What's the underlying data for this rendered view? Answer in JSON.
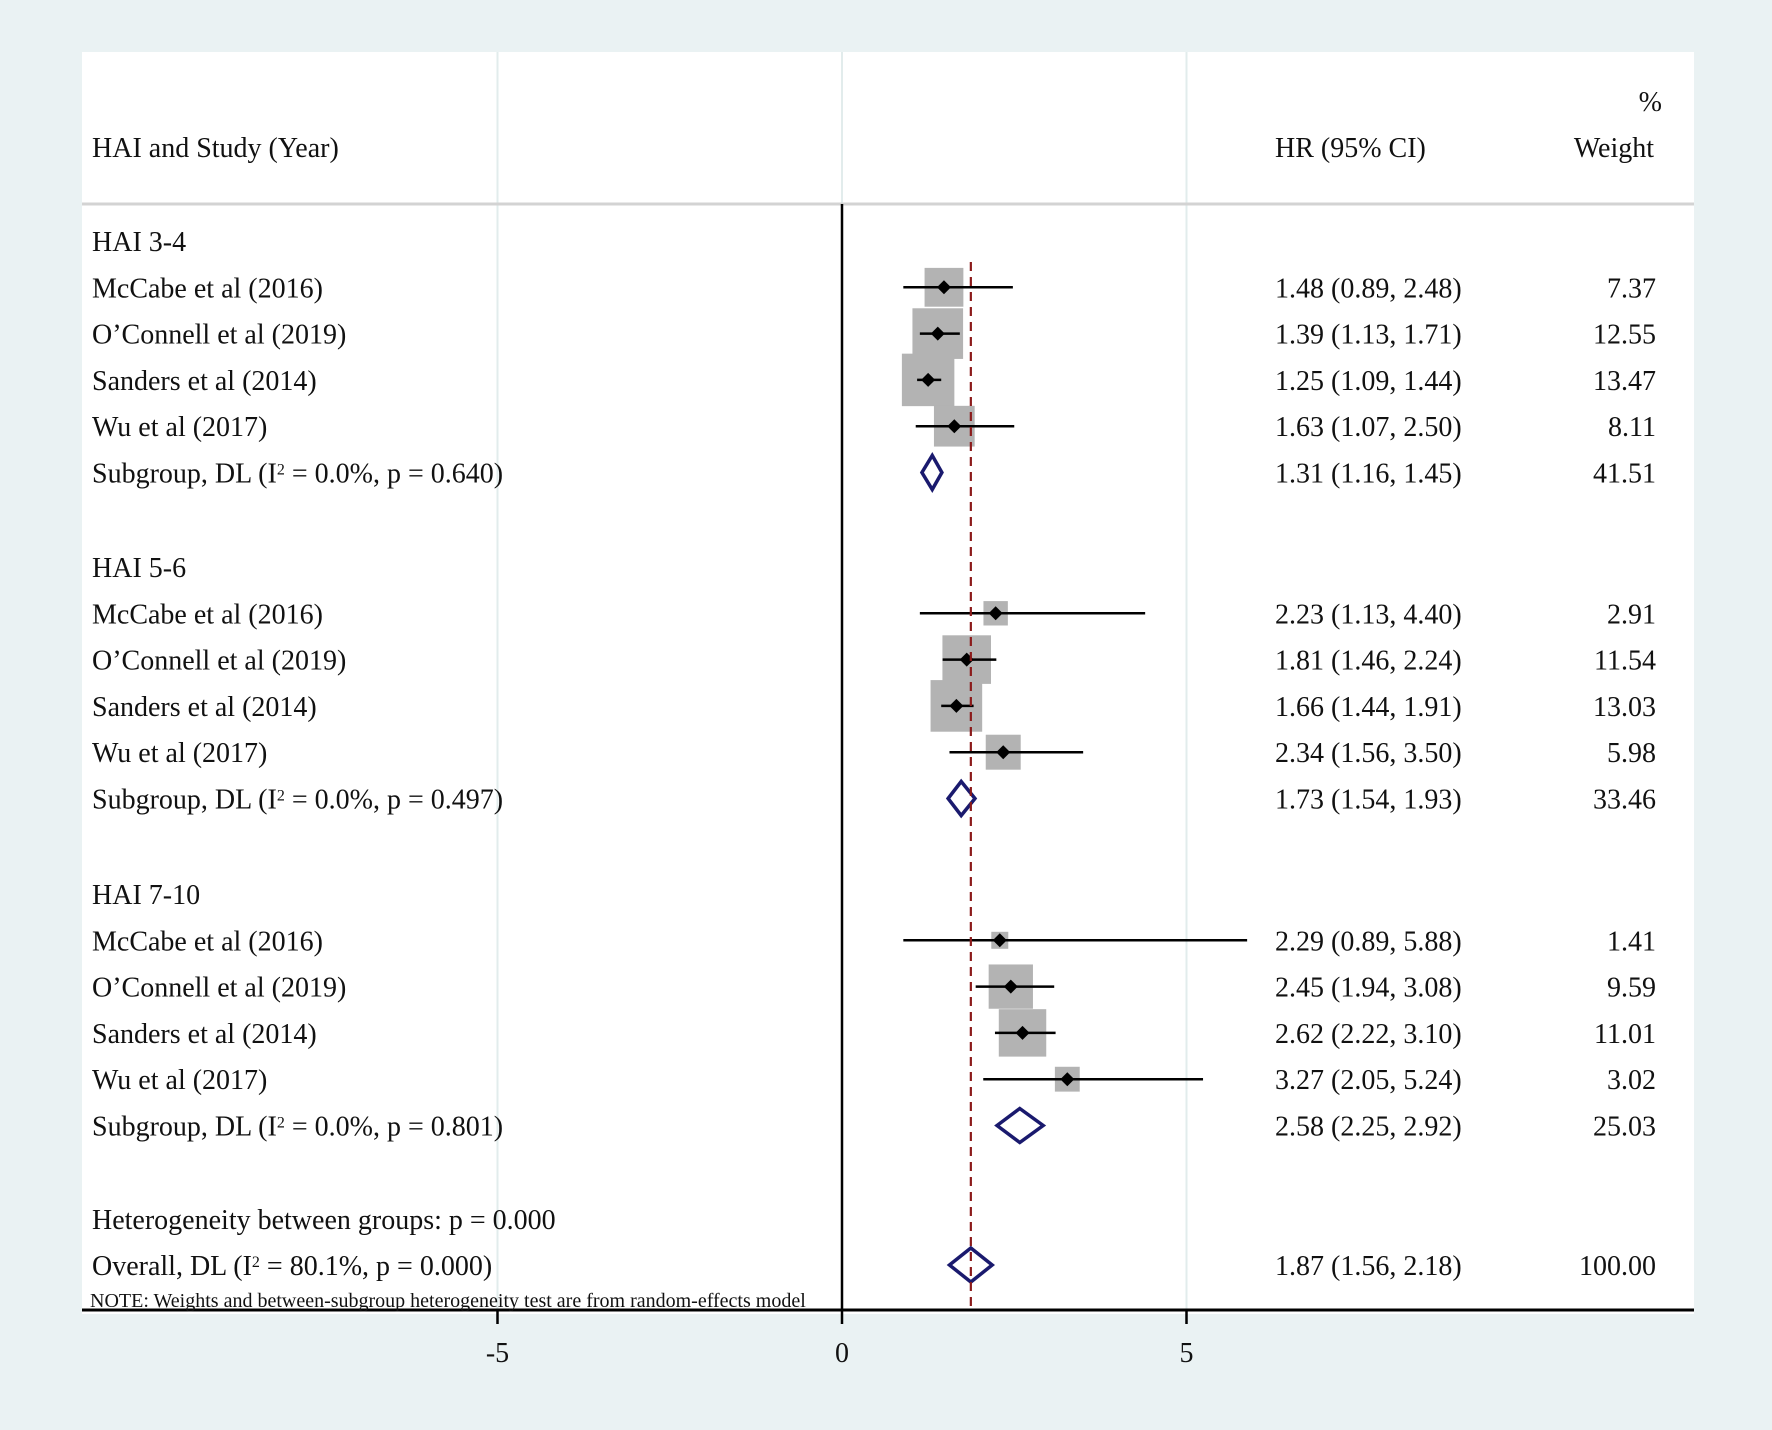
{
  "chart_data": {
    "type": "forest",
    "header": {
      "study_label": "HAI and Study (Year)",
      "effect_label": "HR (95% CI)",
      "weight_label_top": "%",
      "weight_label": "Weight"
    },
    "x_axis": {
      "ticks": [
        -5,
        0,
        5
      ],
      "tick_labels": [
        "-5",
        "0",
        "5"
      ],
      "null_line": 0,
      "overall_reference_line": 1.87,
      "grid_vertical": true
    },
    "groups": [
      {
        "label": "HAI 3-4",
        "studies": [
          {
            "name": "McCabe et al  (2016)",
            "hr": 1.48,
            "lower": 0.89,
            "upper": 2.48,
            "ci_text": "1.48 (0.89, 2.48)",
            "weight": 7.37,
            "weight_text": "7.37"
          },
          {
            "name": "O’Connell et al  (2019)",
            "hr": 1.39,
            "lower": 1.13,
            "upper": 1.71,
            "ci_text": "1.39 (1.13, 1.71)",
            "weight": 12.55,
            "weight_text": "12.55"
          },
          {
            "name": "Sanders et al  (2014)",
            "hr": 1.25,
            "lower": 1.09,
            "upper": 1.44,
            "ci_text": "1.25 (1.09, 1.44)",
            "weight": 13.47,
            "weight_text": "13.47"
          },
          {
            "name": "Wu et al  (2017)",
            "hr": 1.63,
            "lower": 1.07,
            "upper": 2.5,
            "ci_text": "1.63 (1.07, 2.50)",
            "weight": 8.11,
            "weight_text": "8.11"
          }
        ],
        "subgroup": {
          "label_pre": "Subgroup, DL (I",
          "sup": "2",
          "label_post": " = 0.0%, p = 0.640)",
          "hr": 1.31,
          "lower": 1.16,
          "upper": 1.45,
          "ci_text": "1.31 (1.16, 1.45)",
          "weight_text": "41.51"
        }
      },
      {
        "label": "HAI 5-6",
        "studies": [
          {
            "name": "McCabe et al  (2016)",
            "hr": 2.23,
            "lower": 1.13,
            "upper": 4.4,
            "ci_text": "2.23 (1.13, 4.40)",
            "weight": 2.91,
            "weight_text": "2.91"
          },
          {
            "name": "O’Connell et al  (2019)",
            "hr": 1.81,
            "lower": 1.46,
            "upper": 2.24,
            "ci_text": "1.81 (1.46, 2.24)",
            "weight": 11.54,
            "weight_text": "11.54"
          },
          {
            "name": "Sanders et al  (2014)",
            "hr": 1.66,
            "lower": 1.44,
            "upper": 1.91,
            "ci_text": "1.66 (1.44, 1.91)",
            "weight": 13.03,
            "weight_text": "13.03"
          },
          {
            "name": "Wu et al  (2017)",
            "hr": 2.34,
            "lower": 1.56,
            "upper": 3.5,
            "ci_text": "2.34 (1.56, 3.50)",
            "weight": 5.98,
            "weight_text": "5.98"
          }
        ],
        "subgroup": {
          "label_pre": "Subgroup, DL (I",
          "sup": "2",
          "label_post": " = 0.0%, p = 0.497)",
          "hr": 1.73,
          "lower": 1.54,
          "upper": 1.93,
          "ci_text": "1.73 (1.54, 1.93)",
          "weight_text": "33.46"
        }
      },
      {
        "label": "HAI 7-10",
        "studies": [
          {
            "name": "McCabe et al  (2016)",
            "hr": 2.29,
            "lower": 0.89,
            "upper": 5.88,
            "ci_text": "2.29 (0.89, 5.88)",
            "weight": 1.41,
            "weight_text": "1.41"
          },
          {
            "name": "O’Connell et al  (2019)",
            "hr": 2.45,
            "lower": 1.94,
            "upper": 3.08,
            "ci_text": "2.45 (1.94, 3.08)",
            "weight": 9.59,
            "weight_text": "9.59"
          },
          {
            "name": "Sanders et al  (2014)",
            "hr": 2.62,
            "lower": 2.22,
            "upper": 3.1,
            "ci_text": "2.62 (2.22, 3.10)",
            "weight": 11.01,
            "weight_text": "11.01"
          },
          {
            "name": "Wu et al  (2017)",
            "hr": 3.27,
            "lower": 2.05,
            "upper": 5.24,
            "ci_text": "3.27 (2.05, 5.24)",
            "weight": 3.02,
            "weight_text": "3.02"
          }
        ],
        "subgroup": {
          "label_pre": "Subgroup, DL (I",
          "sup": "2",
          "label_post": " = 0.0%, p = 0.801)",
          "hr": 2.58,
          "lower": 2.25,
          "upper": 2.92,
          "ci_text": "2.58 (2.25, 2.92)",
          "weight_text": "25.03"
        }
      }
    ],
    "heterogeneity_text": "Heterogeneity between groups: p = 0.000",
    "overall": {
      "label_pre": "Overall, DL (I",
      "sup": "2",
      "label_post": " = 80.1%, p = 0.000)",
      "hr": 1.87,
      "lower": 1.56,
      "upper": 2.18,
      "ci_text": "1.87 (1.56, 2.18)",
      "weight_text": "100.00"
    },
    "note": "NOTE: Weights and between-subgroup heterogeneity test are from random-effects model",
    "colors": {
      "background": "#eaf2f3",
      "plot_background": "#ffffff",
      "weight_box": "#b3b3b3",
      "diamond": "#1a1a6e",
      "reference_line": "#8b1a1a",
      "grid": "#e2ecec"
    }
  }
}
